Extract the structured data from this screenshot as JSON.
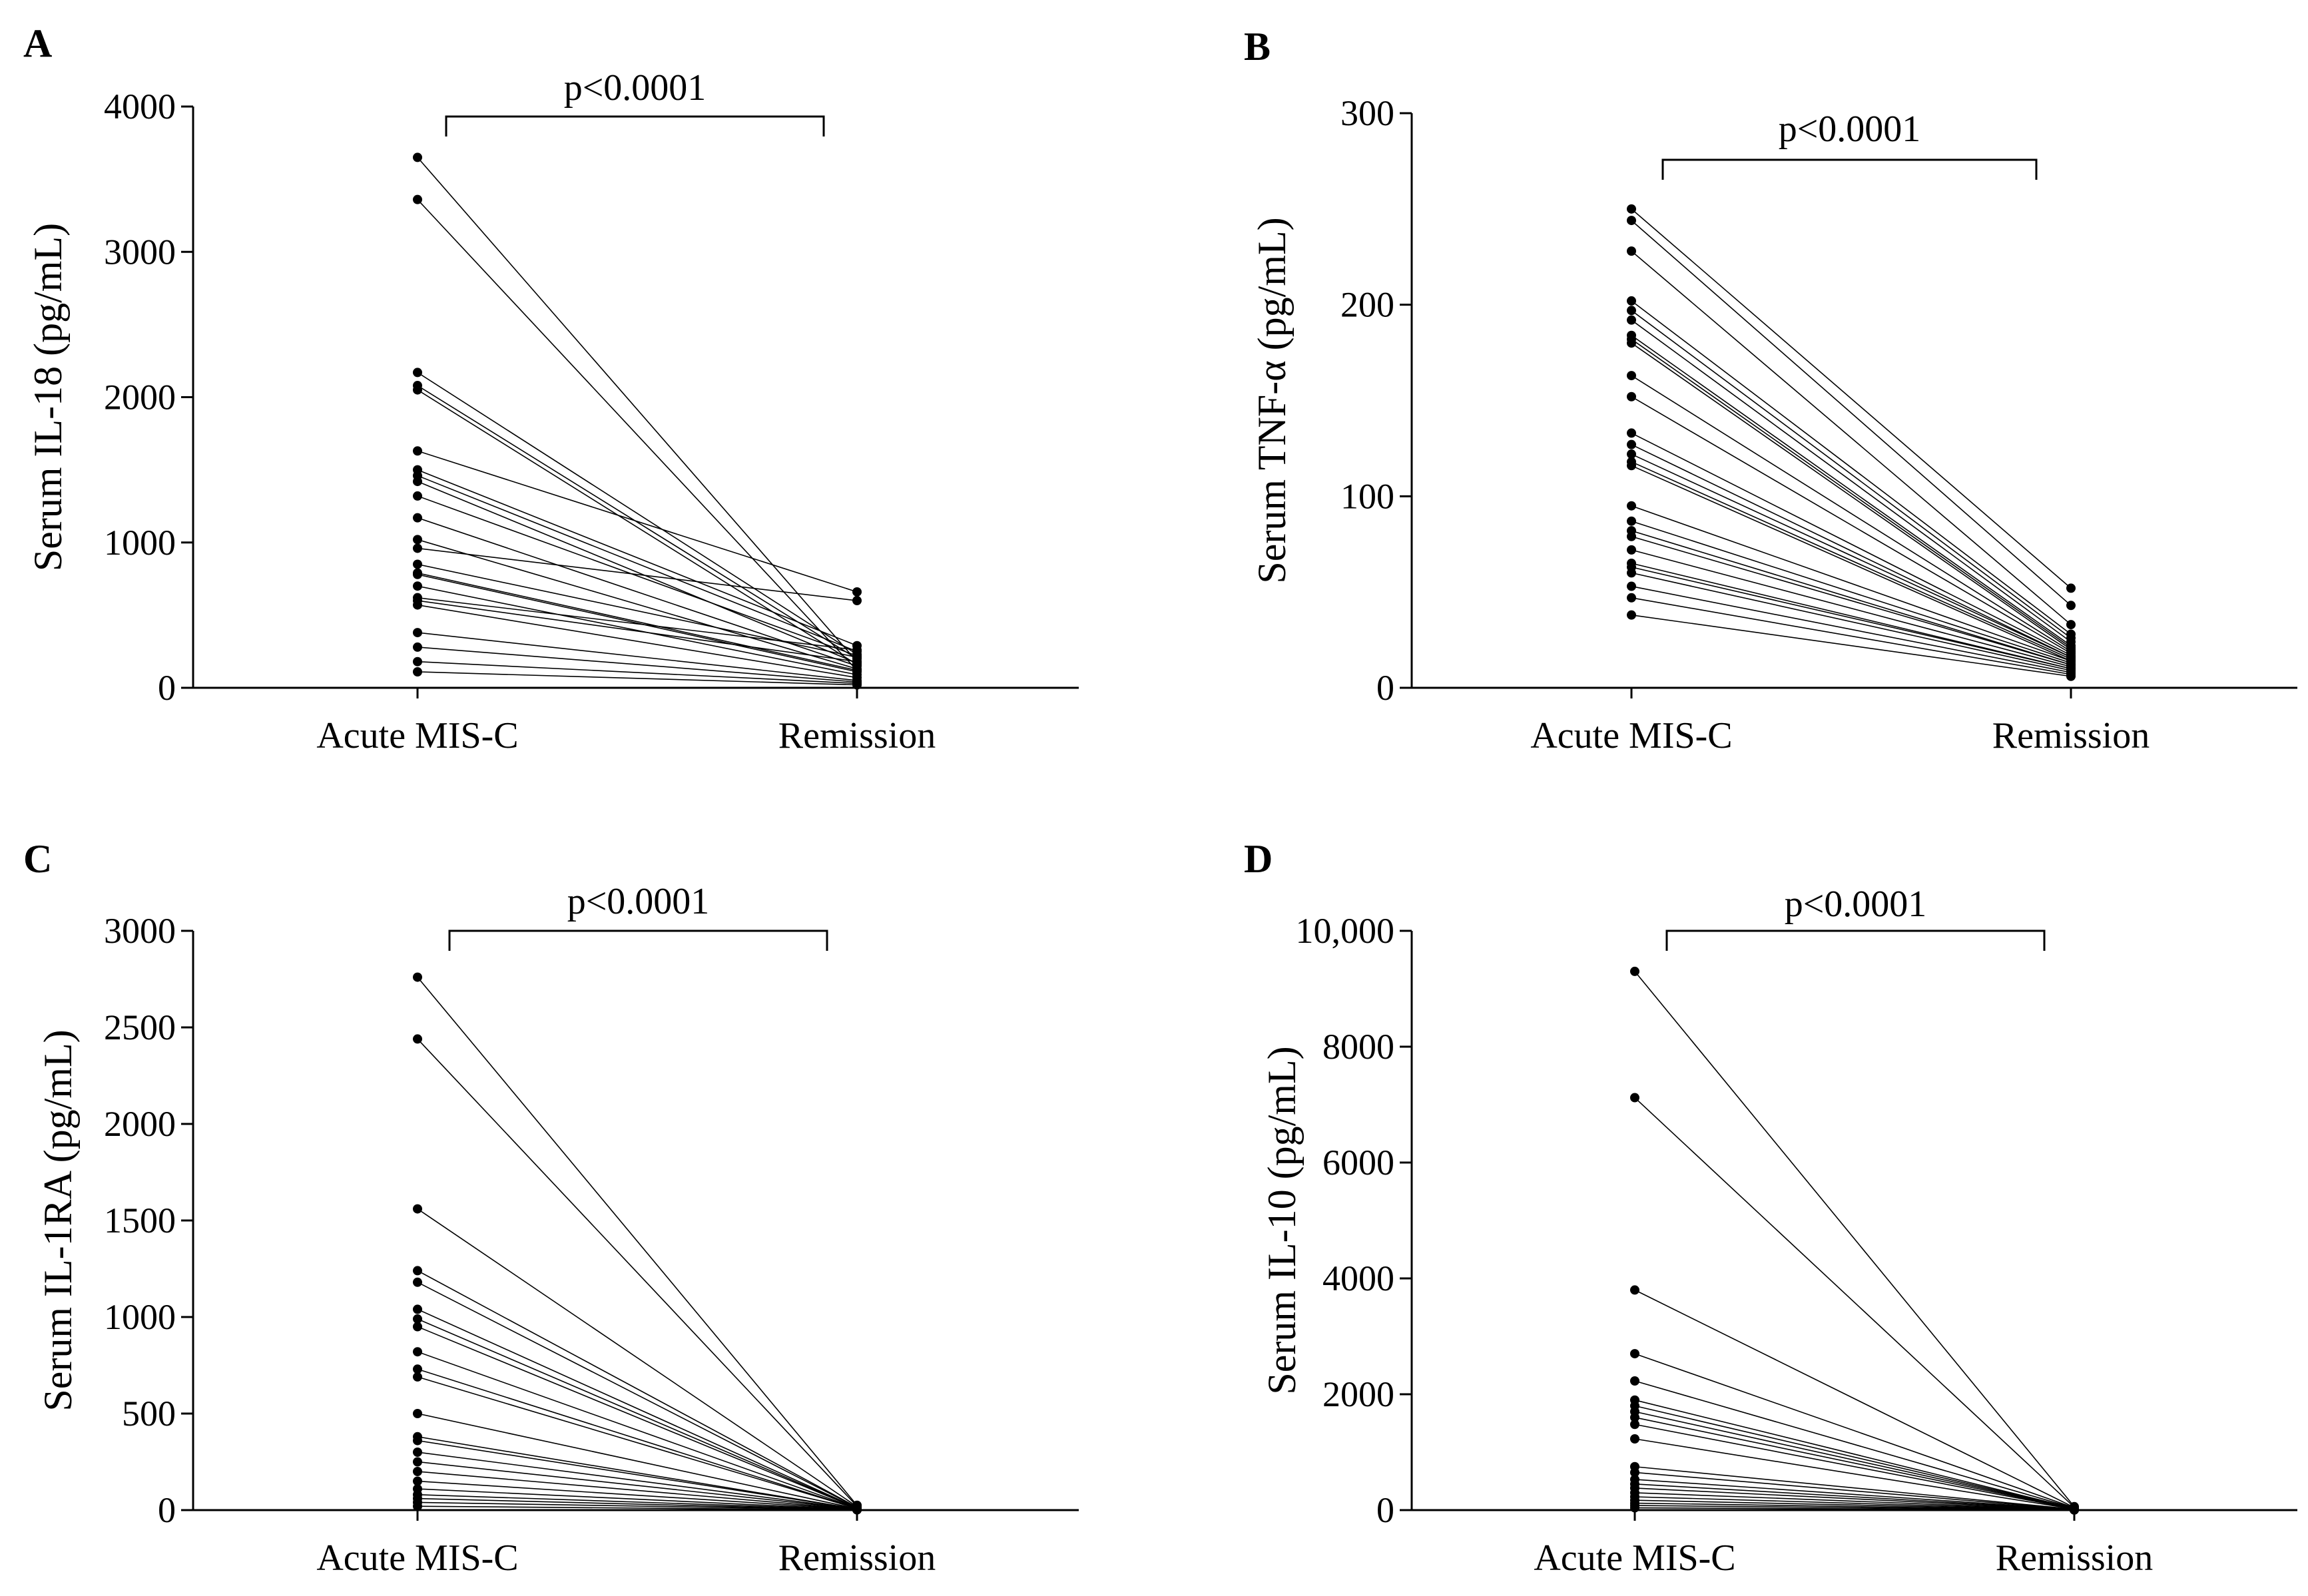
{
  "figure": {
    "categories": [
      "Acute MIS-C",
      "Remission"
    ]
  },
  "chart_data": [
    {
      "type": "line",
      "panel": "A",
      "ylabel": "Serum IL-18 (pg/mL)",
      "ylim": [
        0,
        4000
      ],
      "yticks": [
        0,
        1000,
        2000,
        3000,
        4000
      ],
      "ytick_labels": [
        "0",
        "1000",
        "2000",
        "3000",
        "4000"
      ],
      "categories": [
        "Acute MIS-C",
        "Remission"
      ],
      "annotation": "p<0.0001",
      "pairs": [
        [
          3650,
          180
        ],
        [
          3360,
          120
        ],
        [
          2170,
          230
        ],
        [
          2080,
          200
        ],
        [
          2050,
          160
        ],
        [
          1630,
          660
        ],
        [
          1500,
          290
        ],
        [
          1460,
          250
        ],
        [
          1320,
          220
        ],
        [
          1170,
          150
        ],
        [
          1020,
          130
        ],
        [
          960,
          600
        ],
        [
          850,
          210
        ],
        [
          790,
          120
        ],
        [
          700,
          90
        ],
        [
          600,
          180
        ],
        [
          570,
          70
        ],
        [
          380,
          50
        ],
        [
          280,
          40
        ],
        [
          180,
          30
        ],
        [
          110,
          20
        ],
        [
          620,
          260
        ],
        [
          780,
          110
        ],
        [
          1420,
          170
        ]
      ]
    },
    {
      "type": "line",
      "panel": "B",
      "ylabel": "Serum TNF-α (pg/mL)",
      "ylim": [
        0,
        300
      ],
      "yticks": [
        0,
        100,
        200,
        300
      ],
      "ytick_labels": [
        "0",
        "100",
        "200",
        "300"
      ],
      "categories": [
        "Acute MIS-C",
        "Remission"
      ],
      "annotation": "p<0.0001",
      "pairs": [
        [
          250,
          52
        ],
        [
          244,
          43
        ],
        [
          228,
          33
        ],
        [
          202,
          28
        ],
        [
          197,
          26
        ],
        [
          192,
          24
        ],
        [
          184,
          22
        ],
        [
          182,
          21
        ],
        [
          180,
          20
        ],
        [
          163,
          19
        ],
        [
          152,
          18
        ],
        [
          133,
          17
        ],
        [
          127,
          16
        ],
        [
          122,
          16
        ],
        [
          118,
          15
        ],
        [
          116,
          14
        ],
        [
          95,
          14
        ],
        [
          87,
          13
        ],
        [
          82,
          12
        ],
        [
          79,
          12
        ],
        [
          72,
          11
        ],
        [
          65,
          10
        ],
        [
          63,
          10
        ],
        [
          60,
          9
        ],
        [
          53,
          8
        ],
        [
          47,
          7
        ],
        [
          38,
          6
        ]
      ]
    },
    {
      "type": "line",
      "panel": "C",
      "ylabel": "Serum IL-1RA (pg/mL)",
      "ylim": [
        0,
        3000
      ],
      "yticks": [
        0,
        500,
        1000,
        1500,
        2000,
        2500,
        3000
      ],
      "ytick_labels": [
        "0",
        "500",
        "1000",
        "1500",
        "2000",
        "2500",
        "3000"
      ],
      "categories": [
        "Acute MIS-C",
        "Remission"
      ],
      "annotation": "p<0.0001",
      "pairs": [
        [
          2760,
          25
        ],
        [
          2440,
          20
        ],
        [
          1560,
          18
        ],
        [
          1240,
          15
        ],
        [
          1180,
          14
        ],
        [
          1040,
          12
        ],
        [
          990,
          11
        ],
        [
          950,
          10
        ],
        [
          820,
          9
        ],
        [
          730,
          8
        ],
        [
          690,
          8
        ],
        [
          500,
          7
        ],
        [
          380,
          6
        ],
        [
          360,
          6
        ],
        [
          300,
          5
        ],
        [
          250,
          5
        ],
        [
          200,
          4
        ],
        [
          150,
          4
        ],
        [
          110,
          3
        ],
        [
          80,
          3
        ],
        [
          60,
          2
        ],
        [
          40,
          2
        ],
        [
          20,
          1
        ]
      ]
    },
    {
      "type": "line",
      "panel": "D",
      "ylabel": "Serum IL-10 (pg/mL)",
      "ylim": [
        0,
        10000
      ],
      "yticks": [
        0,
        2000,
        4000,
        6000,
        8000,
        10000
      ],
      "ytick_labels": [
        "0",
        "2000",
        "4000",
        "6000",
        "8000",
        "10,000"
      ],
      "categories": [
        "Acute MIS-C",
        "Remission"
      ],
      "annotation": "p<0.0001",
      "pairs": [
        [
          9300,
          60
        ],
        [
          7120,
          50
        ],
        [
          3800,
          45
        ],
        [
          2700,
          40
        ],
        [
          2230,
          35
        ],
        [
          1900,
          30
        ],
        [
          1800,
          28
        ],
        [
          1700,
          25
        ],
        [
          1600,
          22
        ],
        [
          1480,
          20
        ],
        [
          1230,
          18
        ],
        [
          750,
          15
        ],
        [
          650,
          12
        ],
        [
          530,
          10
        ],
        [
          450,
          9
        ],
        [
          380,
          8
        ],
        [
          300,
          7
        ],
        [
          230,
          6
        ],
        [
          170,
          5
        ],
        [
          120,
          4
        ],
        [
          80,
          3
        ],
        [
          40,
          2
        ]
      ]
    }
  ]
}
